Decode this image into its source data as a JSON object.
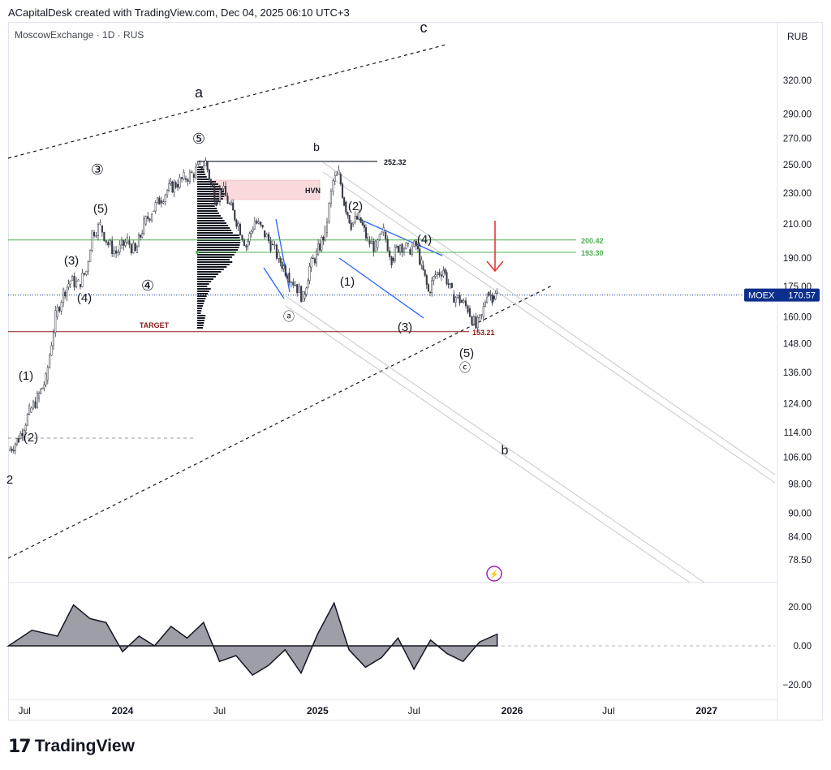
{
  "header": {
    "caption": "ACapitalDesk created with TradingView.com, Dec 04, 2025 06:10 UTC+3"
  },
  "chart_header": {
    "symbol": "MoscowExchange · 1D · RUS",
    "currency": "RUB"
  },
  "footer": {
    "brand": "TradingView",
    "brand_icon": "tradingview-logo-icon"
  },
  "colors": {
    "candle": "#363a45",
    "green_level": "#4caf50",
    "target_level": "#8b1a1a",
    "blue_lines": "#2962ff",
    "hvn_zone": "#f8c9cd",
    "arrow": "#e53935",
    "price_badge": "#0d2f8c",
    "oscillator_fill": "#9e9ea6"
  },
  "chart_data": [
    {
      "type": "line",
      "subtype": "candlestick",
      "price_scale": "log",
      "y_ticks": [
        78.5,
        84.0,
        90.0,
        98.0,
        106.0,
        114.0,
        124.0,
        136.0,
        148.0,
        160.0,
        175.0,
        190.0,
        210.0,
        230.0,
        250.0,
        270.0,
        290.0,
        320.0
      ],
      "y_tick_labels": [
        "78.50",
        "84.00",
        "90.00",
        "98.00",
        "106.00",
        "114.00",
        "124.00",
        "136.00",
        "148.00",
        "160.00",
        "175.00",
        "190.00",
        "210.00",
        "230.00",
        "250.00",
        "270.00",
        "290.00",
        "320.00"
      ],
      "x_tick_labels": [
        "Jul",
        "2024",
        "Jul",
        "2025",
        "Jul",
        "2026",
        "Jul",
        "2027"
      ],
      "series": [
        {
          "x": [
            "2023-06-01",
            "2023-06-20",
            "2023-07-10",
            "2023-07-25",
            "2023-08-10",
            "2023-08-28",
            "2023-09-12",
            "2023-09-25",
            "2023-10-10",
            "2023-10-25",
            "2023-11-05",
            "2023-11-20",
            "2023-12-05",
            "2023-12-20",
            "2024-01-10",
            "2024-01-25",
            "2024-02-10",
            "2024-02-25",
            "2024-03-10",
            "2024-03-25",
            "2024-04-10",
            "2024-04-25",
            "2024-05-10",
            "2024-05-25",
            "2024-06-05",
            "2024-06-15",
            "2024-06-25",
            "2024-07-05",
            "2024-07-20",
            "2024-08-05",
            "2024-08-20",
            "2024-09-05",
            "2024-09-20",
            "2024-10-05",
            "2024-10-20",
            "2024-11-05",
            "2024-11-20",
            "2024-12-05",
            "2024-12-17",
            "2024-12-30",
            "2025-01-15",
            "2025-01-30",
            "2025-02-10",
            "2025-02-20",
            "2025-03-05",
            "2025-03-20",
            "2025-04-05",
            "2025-04-20",
            "2025-05-05",
            "2025-05-20",
            "2025-06-05",
            "2025-06-20",
            "2025-07-05",
            "2025-07-15",
            "2025-07-28",
            "2025-08-10",
            "2025-08-25",
            "2025-09-10",
            "2025-09-25",
            "2025-10-10",
            "2025-10-25",
            "2025-11-05",
            "2025-11-15",
            "2025-11-25",
            "2025-12-04"
          ],
          "close": [
            108,
            112,
            121,
            126,
            133,
            160,
            172,
            178,
            176,
            183,
            205,
            209,
            198,
            193,
            200,
            193,
            210,
            218,
            225,
            232,
            236,
            240,
            243,
            248,
            252,
            236,
            226,
            233,
            222,
            210,
            197,
            212,
            206,
            198,
            190,
            182,
            176,
            169,
            185,
            192,
            205,
            238,
            243,
            224,
            210,
            214,
            200,
            196,
            205,
            190,
            198,
            195,
            197,
            186,
            172,
            181,
            184,
            171,
            168,
            164,
            155,
            160,
            172,
            170,
            170.57
          ]
        }
      ],
      "levels": [
        {
          "label": "252.32",
          "value": 252.32
        },
        {
          "label": "200.42",
          "value": 200.42
        },
        {
          "label": "193.30",
          "value": 193.3
        },
        {
          "label": "153.21",
          "value": 153.21
        },
        {
          "label": "TARGET",
          "value": 153.21
        }
      ],
      "last_price": {
        "ticker": "MOEX",
        "value": "170.57"
      },
      "annotations": {
        "zone_label": "HVN",
        "target_label": "TARGET",
        "waves": [
          "a",
          "b",
          "c",
          "(1)",
          "(2)",
          "(3)",
          "(4)",
          "(5)",
          "③",
          "④",
          "⑤",
          "ⓐ",
          "ⓑ",
          "ⓒ",
          "(2)",
          "(1)",
          "(3)",
          "(4)",
          "(5)",
          "(1)",
          "(2)",
          "(3)",
          "(4)",
          "(5)",
          "2"
        ]
      }
    },
    {
      "type": "area",
      "name": "",
      "y_ticks": [
        20,
        0,
        -20
      ],
      "y_tick_labels": [
        "20.00",
        "0.00",
        "−20.00"
      ],
      "x": [
        "2023-06-01",
        "2023-07-15",
        "2023-09-01",
        "2023-10-01",
        "2023-11-01",
        "2023-12-01",
        "2024-01-01",
        "2024-02-01",
        "2024-03-01",
        "2024-04-01",
        "2024-05-01",
        "2024-06-01",
        "2024-07-01",
        "2024-08-01",
        "2024-09-01",
        "2024-10-01",
        "2024-11-01",
        "2024-12-01",
        "2025-01-01",
        "2025-02-01",
        "2025-03-01",
        "2025-04-01",
        "2025-05-01",
        "2025-06-01",
        "2025-07-01",
        "2025-08-01",
        "2025-09-01",
        "2025-10-01",
        "2025-11-01",
        "2025-12-04"
      ],
      "values": [
        0,
        8,
        5,
        21,
        14,
        12,
        -3,
        5,
        0,
        10,
        4,
        12,
        -8,
        -5,
        -15,
        -10,
        -2,
        -14,
        6,
        22,
        -2,
        -11,
        -6,
        4,
        -12,
        3,
        -4,
        -8,
        2,
        6
      ]
    }
  ]
}
